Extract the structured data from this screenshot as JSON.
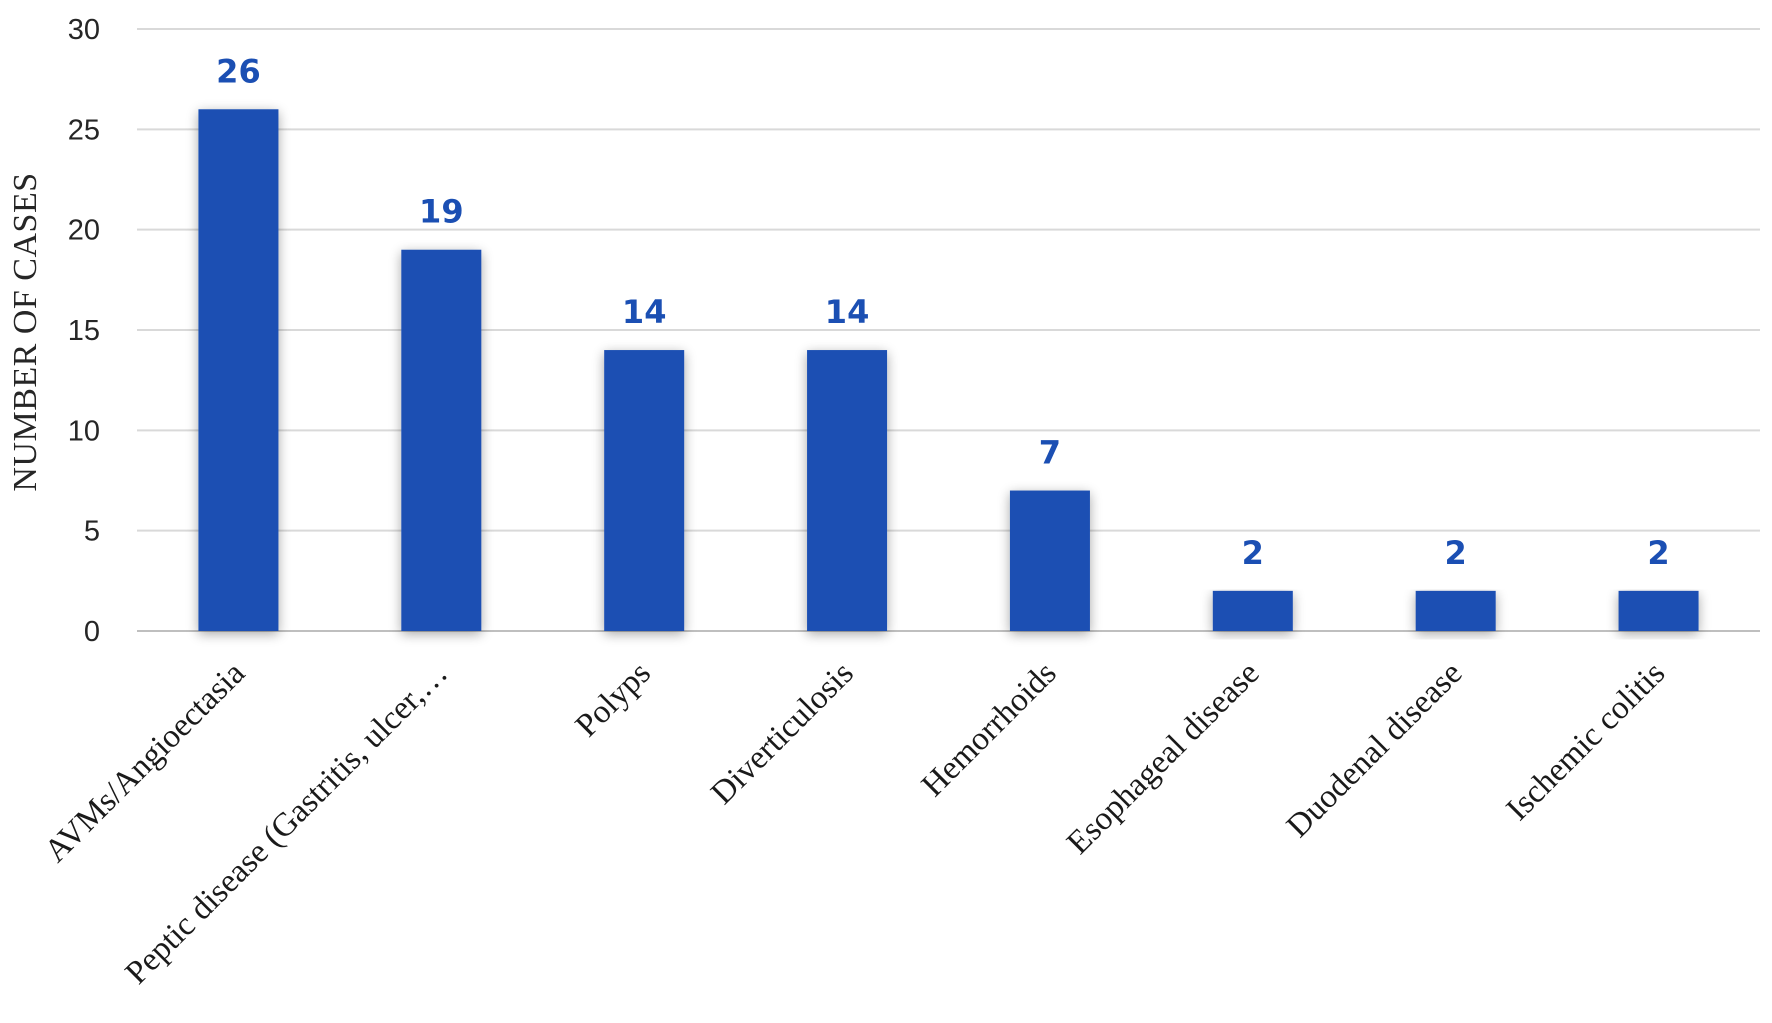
{
  "chart_data": {
    "type": "bar",
    "categories": [
      "AVMs/Angioectasia",
      "Peptic disease (Gastritis, ulcer,…",
      "Polyps",
      "Diverticulosis",
      "Hemorrhoids",
      "Esophageal disease",
      "Duodenal disease",
      "Ischemic colitis"
    ],
    "values": [
      26,
      19,
      14,
      14,
      7,
      2,
      2,
      2
    ],
    "data_labels": [
      "26",
      "19",
      "14",
      "14",
      "7",
      "2",
      "2",
      "2"
    ],
    "title": "",
    "xlabel": "",
    "ylabel": "NUMBER OF CASES",
    "ylim": [
      0,
      30
    ],
    "yticks": [
      0,
      5,
      10,
      15,
      20,
      25,
      30
    ],
    "ytick_labels": [
      "0",
      "5",
      "10",
      "15",
      "20",
      "25",
      "30"
    ],
    "grid": true,
    "legend": "none",
    "colors": {
      "bar": "#1B4FB3",
      "data_label": "#1B4FB3",
      "grid": "#d9d9d9",
      "axis": "#bfbfbf",
      "text": "#262626"
    }
  }
}
